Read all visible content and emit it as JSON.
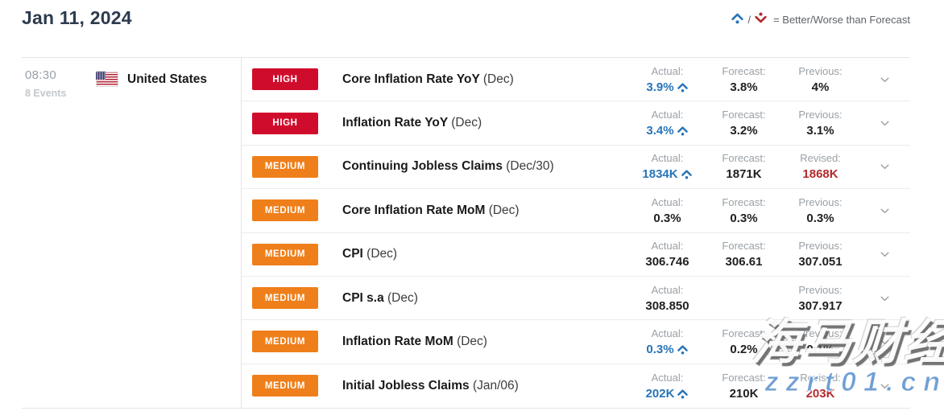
{
  "header": {
    "date_title": "Jan 11, 2024",
    "legend": {
      "better_icon": "chevron-up-dot-icon",
      "worse_icon": "chevron-down-dot-icon",
      "separator": "/",
      "text": "= Better/Worse than Forecast"
    }
  },
  "group": {
    "time": "08:30",
    "events_count": "8 Events",
    "country": "United States",
    "flag": "us-flag-icon"
  },
  "colors": {
    "high_badge": "#d00c2d",
    "medium_badge": "#ef7f1a",
    "better_blue": "#2774b8",
    "revised_red": "#b3282d",
    "value_dark": "#212121",
    "label_gray": "#9aa0a6",
    "title_navy": "#2c3a4e"
  },
  "watermark": {
    "line1": "海马财经",
    "line2": "zzrt01.cn"
  },
  "rows": [
    {
      "importance": "HIGH",
      "level": "high",
      "name": "Core Inflation Rate YoY",
      "period": "(Dec)",
      "columns": [
        {
          "label": "Actual:",
          "value": "3.9%",
          "trend": "up",
          "tone": "better"
        },
        {
          "label": "Forecast:",
          "value": "3.8%",
          "trend": "",
          "tone": "default"
        },
        {
          "label": "Previous:",
          "value": "4%",
          "trend": "",
          "tone": "default"
        }
      ]
    },
    {
      "importance": "HIGH",
      "level": "high",
      "name": "Inflation Rate YoY",
      "period": "(Dec)",
      "columns": [
        {
          "label": "Actual:",
          "value": "3.4%",
          "trend": "up",
          "tone": "better"
        },
        {
          "label": "Forecast:",
          "value": "3.2%",
          "trend": "",
          "tone": "default"
        },
        {
          "label": "Previous:",
          "value": "3.1%",
          "trend": "",
          "tone": "default"
        }
      ]
    },
    {
      "importance": "MEDIUM",
      "level": "medium",
      "name": "Continuing Jobless Claims",
      "period": "(Dec/30)",
      "columns": [
        {
          "label": "Actual:",
          "value": "1834K",
          "trend": "up",
          "tone": "better"
        },
        {
          "label": "Forecast:",
          "value": "1871K",
          "trend": "",
          "tone": "default"
        },
        {
          "label": "Revised:",
          "value": "1868K",
          "trend": "",
          "tone": "revised"
        }
      ]
    },
    {
      "importance": "MEDIUM",
      "level": "medium",
      "name": "Core Inflation Rate MoM",
      "period": "(Dec)",
      "columns": [
        {
          "label": "Actual:",
          "value": "0.3%",
          "trend": "",
          "tone": "default"
        },
        {
          "label": "Forecast:",
          "value": "0.3%",
          "trend": "",
          "tone": "default"
        },
        {
          "label": "Previous:",
          "value": "0.3%",
          "trend": "",
          "tone": "default"
        }
      ]
    },
    {
      "importance": "MEDIUM",
      "level": "medium",
      "name": "CPI",
      "period": "(Dec)",
      "columns": [
        {
          "label": "Actual:",
          "value": "306.746",
          "trend": "",
          "tone": "default"
        },
        {
          "label": "Forecast:",
          "value": "306.61",
          "trend": "",
          "tone": "default"
        },
        {
          "label": "Previous:",
          "value": "307.051",
          "trend": "",
          "tone": "default"
        }
      ]
    },
    {
      "importance": "MEDIUM",
      "level": "medium",
      "name": "CPI s.a",
      "period": "(Dec)",
      "columns": [
        {
          "label": "Actual:",
          "value": "308.850",
          "trend": "",
          "tone": "default"
        },
        {
          "label": "",
          "value": "",
          "trend": "",
          "tone": "default"
        },
        {
          "label": "Previous:",
          "value": "307.917",
          "trend": "",
          "tone": "default"
        }
      ]
    },
    {
      "importance": "MEDIUM",
      "level": "medium",
      "name": "Inflation Rate MoM",
      "period": "(Dec)",
      "columns": [
        {
          "label": "Actual:",
          "value": "0.3%",
          "trend": "up",
          "tone": "better"
        },
        {
          "label": "Forecast:",
          "value": "0.2%",
          "trend": "",
          "tone": "default"
        },
        {
          "label": "Previous:",
          "value": "0.1%",
          "trend": "",
          "tone": "default"
        }
      ]
    },
    {
      "importance": "MEDIUM",
      "level": "medium",
      "name": "Initial Jobless Claims",
      "period": "(Jan/06)",
      "columns": [
        {
          "label": "Actual:",
          "value": "202K",
          "trend": "up",
          "tone": "better"
        },
        {
          "label": "Forecast:",
          "value": "210K",
          "trend": "",
          "tone": "default"
        },
        {
          "label": "Revised:",
          "value": "203K",
          "trend": "",
          "tone": "revised"
        }
      ]
    }
  ]
}
